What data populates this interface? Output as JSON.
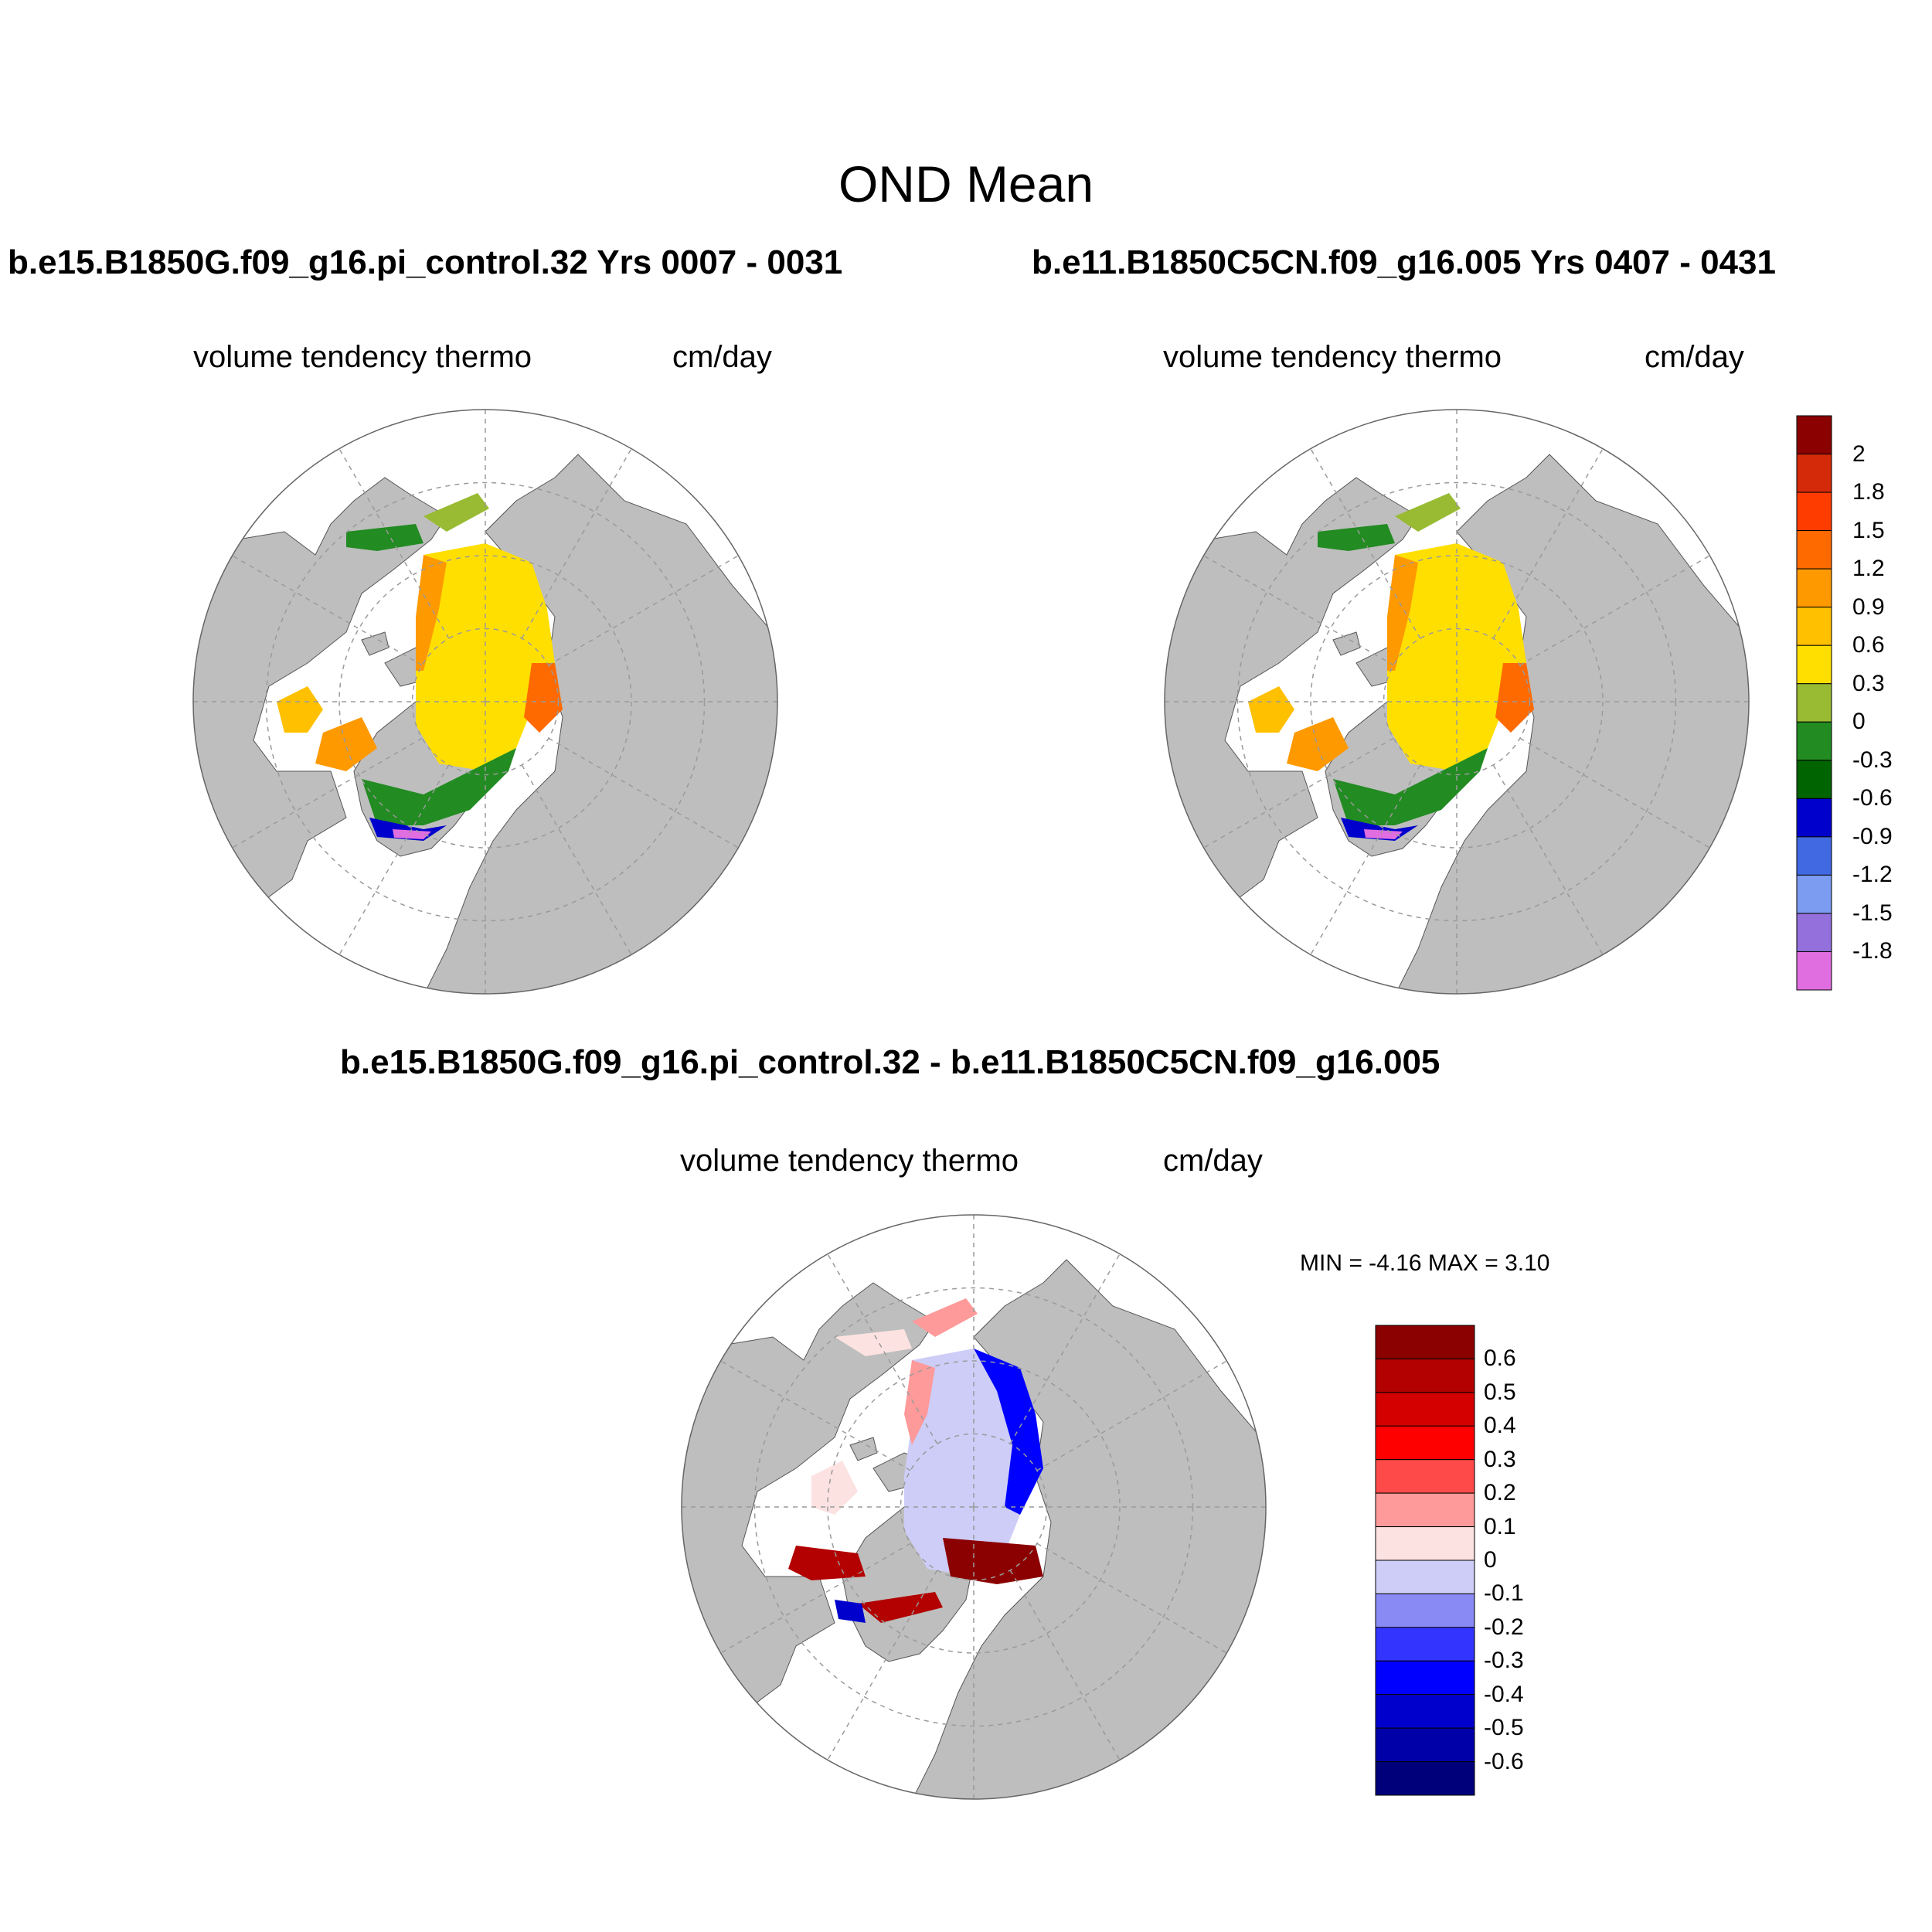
{
  "title": "OND Mean",
  "panels": [
    {
      "id": "case1",
      "case_title": "b.e15.B1850G.f09_g16.pi_control.32  Yrs 0007 - 0031",
      "variable": "volume tendency thermo",
      "units": "cm/day"
    },
    {
      "id": "case2",
      "case_title": "b.e11.B1850C5CN.f09_g16.005  Yrs 0407 - 0431",
      "variable": "volume tendency thermo",
      "units": "cm/day"
    },
    {
      "id": "diff",
      "case_title": "b.e15.B1850G.f09_g16.pi_control.32 - b.e11.B1850C5CN.f09_g16.005",
      "variable": "volume tendency thermo",
      "units": "cm/day",
      "stats": "MIN =  -4.16 MAX =   3.10"
    }
  ],
  "colorbar_main": {
    "labels": [
      "2",
      "1.8",
      "1.5",
      "1.2",
      "0.9",
      "0.6",
      "0.3",
      "0",
      "-0.3",
      "-0.6",
      "-0.9",
      "-1.2",
      "-1.5",
      "-1.8"
    ],
    "colors": [
      "#8b0000",
      "#d42a0a",
      "#ff3c00",
      "#ff6a00",
      "#ff9900",
      "#ffc000",
      "#ffdf00",
      "#99bb33",
      "#228b22",
      "#006400",
      "#0000cd",
      "#4169e1",
      "#7b9cf0",
      "#9370db",
      "#e06ee0"
    ]
  },
  "colorbar_diff": {
    "labels": [
      "0.6",
      "0.5",
      "0.4",
      "0.3",
      "0.2",
      "0.1",
      "0",
      "-0.1",
      "-0.2",
      "-0.3",
      "-0.4",
      "-0.5",
      "-0.6"
    ],
    "colors": [
      "#8b0000",
      "#b30000",
      "#d40000",
      "#ff0000",
      "#ff4a4a",
      "#ff9a9a",
      "#fde2e2",
      "#cdcdf8",
      "#8a8af5",
      "#3434ff",
      "#0000ff",
      "#0000cd",
      "#0000a8",
      "#00007a"
    ]
  },
  "colors": {
    "land": "#bebebe",
    "ocean": "#ffffff",
    "grid": "#9a9a9a"
  }
}
